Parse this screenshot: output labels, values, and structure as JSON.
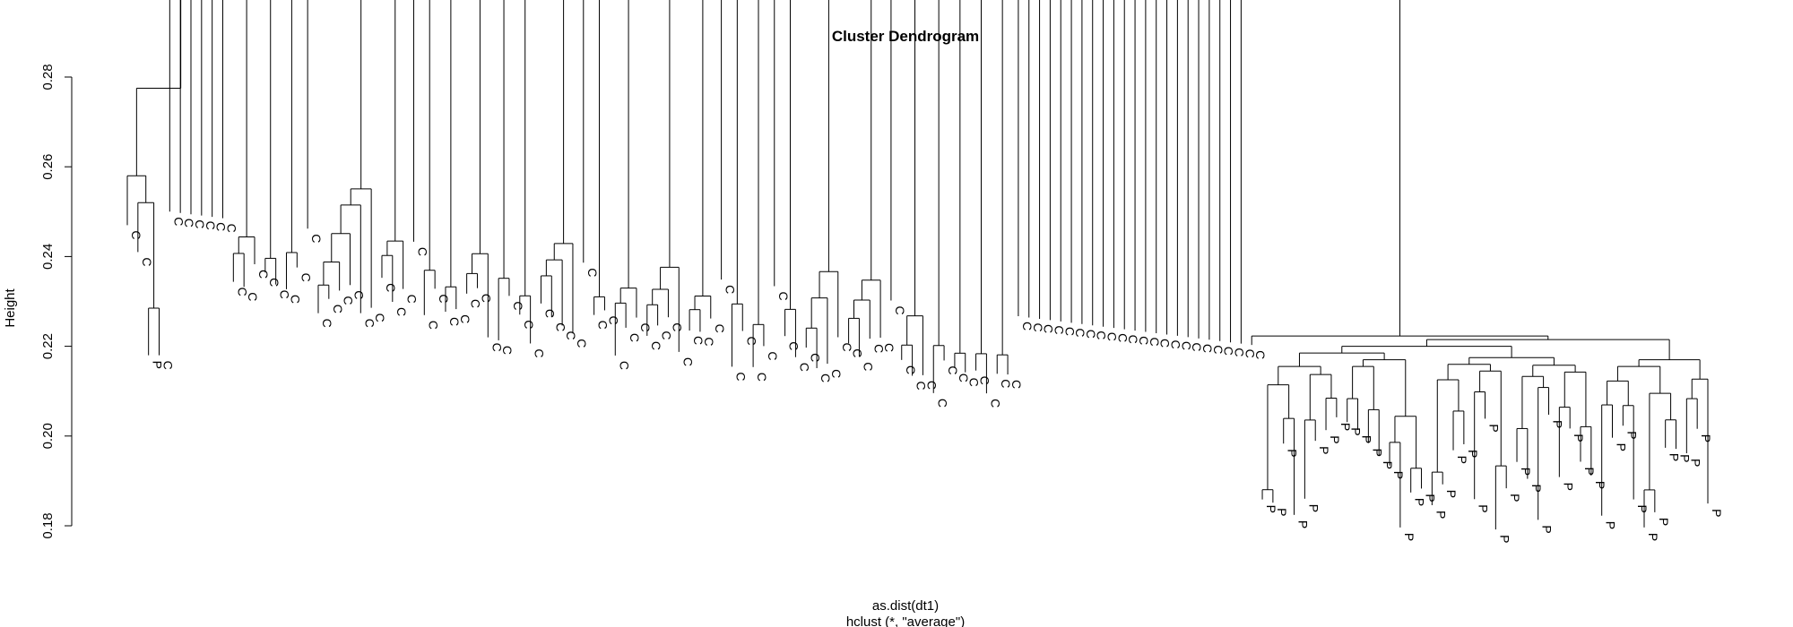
{
  "chart_data": {
    "type": "dendrogram",
    "title": "Cluster Dendrogram",
    "xlabel": "as.dist(dt1)",
    "sublabel": "hclust (*, \"average\")",
    "ylabel": "Height",
    "ylim": [
      0.18,
      0.28
    ],
    "yticks": [
      "0.18",
      "0.20",
      "0.22",
      "0.24",
      "0.26",
      "0.28"
    ],
    "grid": false,
    "outlier_group": {
      "leaves": [
        "C",
        "C",
        "P",
        "C"
      ],
      "leaf_heights": [
        0.247,
        0.241,
        0.218,
        0.218
      ],
      "merge_heights": [
        0.2285,
        0.252,
        0.258
      ]
    },
    "c_group": {
      "tree": [
        [
          "C"
        ],
        [
          "C"
        ],
        [
          "C"
        ],
        [
          "C"
        ],
        [
          "C"
        ],
        [
          "C"
        ],
        [
          "C",
          "C",
          "C"
        ],
        [
          "C",
          "C"
        ],
        [
          "C",
          "C"
        ],
        [
          "C"
        ],
        [
          "C",
          "C",
          "C",
          "C",
          "C",
          "C"
        ],
        [
          "C",
          "C",
          "C"
        ],
        [
          "C"
        ],
        [
          "C",
          "C"
        ],
        [
          "C",
          "C"
        ],
        [
          "C",
          "C",
          "C"
        ],
        [
          "C",
          "C"
        ],
        [
          "C",
          "C"
        ],
        [
          "C",
          "C",
          "C",
          "C"
        ],
        [
          "C"
        ],
        [
          "C",
          "C"
        ],
        [
          "C",
          "C",
          "C"
        ],
        [
          "C",
          "C",
          "C",
          "C"
        ],
        [
          "C",
          "C",
          "C"
        ],
        [
          "C"
        ],
        [
          "C",
          "C"
        ],
        [
          "C",
          "C"
        ],
        [
          "C"
        ],
        [
          "C",
          "C"
        ],
        [
          "C",
          "C",
          "C",
          "C"
        ],
        [
          "C",
          "C",
          "C",
          "C"
        ],
        [
          "C"
        ],
        [
          "C",
          "C",
          "C"
        ],
        [
          "C",
          "C"
        ],
        [
          "C",
          "C"
        ],
        [
          "C",
          "C"
        ],
        [
          "C",
          "C"
        ],
        [
          "C"
        ],
        [
          "C"
        ],
        [
          "C"
        ],
        [
          "C"
        ],
        [
          "C"
        ],
        [
          "C"
        ],
        [
          "C"
        ],
        [
          "C"
        ],
        [
          "C"
        ],
        [
          "C"
        ],
        [
          "C"
        ],
        [
          "C"
        ],
        [
          "C"
        ],
        [
          "C"
        ],
        [
          "C"
        ],
        [
          "C"
        ],
        [
          "C"
        ],
        [
          "C"
        ],
        [
          "C"
        ],
        [
          "C"
        ],
        [
          "C"
        ],
        [
          "C"
        ],
        [
          "C"
        ]
      ],
      "merge_heights_range": [
        0.223,
        0.2665
      ]
    },
    "p_group": {
      "leaves": [
        "P",
        "P",
        "P",
        "P",
        "P",
        "P",
        "P",
        "P",
        "P",
        "P",
        "P",
        "P",
        "P",
        "P",
        "P",
        "P",
        "P",
        "P",
        "P",
        "P",
        "P",
        "P",
        "P",
        "P",
        "P",
        "P",
        "P",
        "P",
        "P",
        "P",
        "P",
        "P",
        "P",
        "P",
        "P",
        "P",
        "P",
        "P",
        "P",
        "P",
        "P",
        "P",
        "P"
      ],
      "leaf_height_range": [
        0.179,
        0.205
      ],
      "merge_heights_range": [
        0.19,
        0.2155
      ]
    },
    "root_height": 0.2775,
    "cp_merge_height": 0.2195
  }
}
